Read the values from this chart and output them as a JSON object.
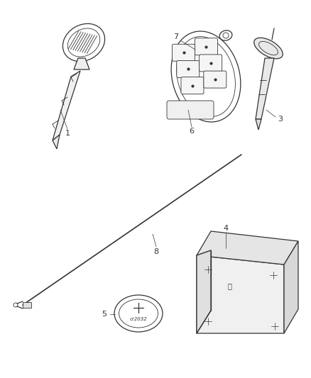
{
  "bg_color": "#ffffff",
  "line_color": "#333333",
  "label_color": "#333333",
  "figsize": [
    4.38,
    5.33
  ],
  "dpi": 100
}
